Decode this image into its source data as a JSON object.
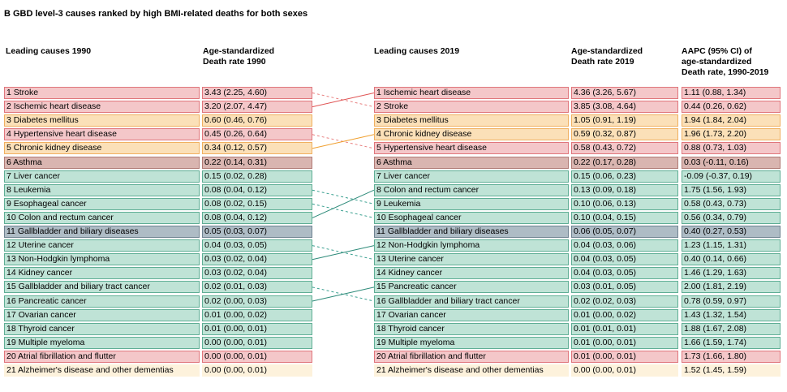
{
  "chart_data": {
    "type": "table",
    "title": "B GBD level-3 causes ranked by high BMI-related deaths for both sexes",
    "headers": {
      "leading_1990": "Leading causes 1990",
      "rate_1990": "Age-standardized\nDeath rate 1990",
      "leading_2019": "Leading causes 2019",
      "rate_2019": "Age-standardized\nDeath rate 2019",
      "aapc": "AAPC (95% CI) of\nage-standardized\nDeath rate, 1990-2019"
    },
    "colors": {
      "red": "#f4c7c9",
      "red_border": "#e0767c",
      "orange": "#fbe0b8",
      "orange_border": "#f0b060",
      "brown": "#d9b5b0",
      "brown_border": "#b07a75",
      "teal": "#bfe3d6",
      "teal_border": "#5fae95",
      "slate": "#aebcc5",
      "slate_border": "#6f8391",
      "cream": "#fdf2dc",
      "cream_border": "#ecd9b0",
      "solid_red_line": "#e05555",
      "solid_orange_line": "#f0a030",
      "solid_teal_line": "#2e8b7a",
      "dashed_red_line": "#e88080",
      "dashed_teal_line": "#3aa090"
    },
    "rows_1990": [
      {
        "rank_label": "1 Stroke",
        "rate": "3.43 (2.25, 4.60)",
        "color": "red"
      },
      {
        "rank_label": "2 Ischemic heart disease",
        "rate": "3.20 (2.07, 4.47)",
        "color": "red"
      },
      {
        "rank_label": "3 Diabetes mellitus",
        "rate": "0.60 (0.46, 0.76)",
        "color": "orange"
      },
      {
        "rank_label": "4 Hypertensive heart disease",
        "rate": "0.45 (0.26, 0.64)",
        "color": "red"
      },
      {
        "rank_label": "5 Chronic kidney disease",
        "rate": "0.34 (0.12, 0.57)",
        "color": "orange"
      },
      {
        "rank_label": "6 Asthma",
        "rate": "0.22 (0.14, 0.31)",
        "color": "brown"
      },
      {
        "rank_label": "7 Liver cancer",
        "rate": "0.15 (0.02, 0.28)",
        "color": "teal"
      },
      {
        "rank_label": "8 Leukemia",
        "rate": "0.08 (0.04, 0.12)",
        "color": "teal"
      },
      {
        "rank_label": "9 Esophageal cancer",
        "rate": "0.08 (0.02, 0.15)",
        "color": "teal"
      },
      {
        "rank_label": "10 Colon and rectum cancer",
        "rate": "0.08 (0.04, 0.12)",
        "color": "teal"
      },
      {
        "rank_label": "11 Gallbladder and biliary diseases",
        "rate": "0.05 (0.03, 0.07)",
        "color": "slate"
      },
      {
        "rank_label": "12 Uterine cancer",
        "rate": "0.04 (0.03, 0.05)",
        "color": "teal"
      },
      {
        "rank_label": "13 Non-Hodgkin lymphoma",
        "rate": "0.03 (0.02, 0.04)",
        "color": "teal"
      },
      {
        "rank_label": "14 Kidney cancer",
        "rate": "0.03 (0.02, 0.04)",
        "color": "teal"
      },
      {
        "rank_label": "15 Gallbladder and biliary tract cancer",
        "rate": "0.02 (0.01, 0.03)",
        "color": "teal"
      },
      {
        "rank_label": "16 Pancreatic cancer",
        "rate": "0.02 (0.00, 0.03)",
        "color": "teal"
      },
      {
        "rank_label": "17 Ovarian cancer",
        "rate": "0.01 (0.00, 0.02)",
        "color": "teal"
      },
      {
        "rank_label": "18 Thyroid cancer",
        "rate": "0.01 (0.00, 0.01)",
        "color": "teal"
      },
      {
        "rank_label": "19 Multiple myeloma",
        "rate": "0.00 (0.00, 0.01)",
        "color": "teal"
      },
      {
        "rank_label": "20 Atrial fibrillation and flutter",
        "rate": "0.00 (0.00, 0.01)",
        "color": "red"
      },
      {
        "rank_label": "21 Alzheimer's disease and other dementias",
        "rate": "0.00 (0.00, 0.01)",
        "color": "cream"
      }
    ],
    "rows_2019": [
      {
        "rank_label": "1 Ischemic heart disease",
        "rate": "4.36 (3.26, 5.67)",
        "aapc": "1.11 (0.88, 1.34)",
        "color": "red"
      },
      {
        "rank_label": "2 Stroke",
        "rate": "3.85 (3.08, 4.64)",
        "aapc": "0.44 (0.26, 0.62)",
        "color": "red"
      },
      {
        "rank_label": "3 Diabetes mellitus",
        "rate": "1.05 (0.91, 1.19)",
        "aapc": "1.94 (1.84, 2.04)",
        "color": "orange"
      },
      {
        "rank_label": "4 Chronic kidney disease",
        "rate": "0.59 (0.32, 0.87)",
        "aapc": "1.96 (1.73, 2.20)",
        "color": "orange"
      },
      {
        "rank_label": "5 Hypertensive heart disease",
        "rate": "0.58 (0.43, 0.72)",
        "aapc": "0.88 (0.73, 1.03)",
        "color": "red"
      },
      {
        "rank_label": "6 Asthma",
        "rate": "0.22 (0.17, 0.28)",
        "aapc": "0.03 (-0.11, 0.16)",
        "color": "brown"
      },
      {
        "rank_label": "7 Liver cancer",
        "rate": "0.15 (0.06, 0.23)",
        "aapc": "-0.09 (-0.37, 0.19)",
        "color": "teal"
      },
      {
        "rank_label": "8 Colon and rectum cancer",
        "rate": "0.13 (0.09, 0.18)",
        "aapc": "1.75 (1.56, 1.93)",
        "color": "teal"
      },
      {
        "rank_label": "9 Leukemia",
        "rate": "0.10 (0.06, 0.13)",
        "aapc": "0.58 (0.43, 0.73)",
        "color": "teal"
      },
      {
        "rank_label": "10 Esophageal cancer",
        "rate": "0.10 (0.04, 0.15)",
        "aapc": "0.56 (0.34, 0.79)",
        "color": "teal"
      },
      {
        "rank_label": "11 Gallbladder and biliary diseases",
        "rate": "0.06 (0.05, 0.07)",
        "aapc": "0.40 (0.27, 0.53)",
        "color": "slate"
      },
      {
        "rank_label": "12 Non-Hodgkin lymphoma",
        "rate": "0.04 (0.03, 0.06)",
        "aapc": "1.23 (1.15, 1.31)",
        "color": "teal"
      },
      {
        "rank_label": "13 Uterine cancer",
        "rate": "0.04 (0.03, 0.05)",
        "aapc": "0.40 (0.14, 0.66)",
        "color": "teal"
      },
      {
        "rank_label": "14 Kidney cancer",
        "rate": "0.04 (0.03, 0.05)",
        "aapc": "1.46 (1.29, 1.63)",
        "color": "teal"
      },
      {
        "rank_label": "15 Pancreatic cancer",
        "rate": "0.03 (0.01, 0.05)",
        "aapc": "2.00 (1.81, 2.19)",
        "color": "teal"
      },
      {
        "rank_label": "16 Gallbladder and biliary tract cancer",
        "rate": "0.02 (0.02, 0.03)",
        "aapc": "0.78 (0.59, 0.97)",
        "color": "teal"
      },
      {
        "rank_label": "17 Ovarian cancer",
        "rate": "0.01 (0.00, 0.02)",
        "aapc": "1.43 (1.32, 1.54)",
        "color": "teal"
      },
      {
        "rank_label": "18 Thyroid cancer",
        "rate": "0.01 (0.01, 0.01)",
        "aapc": "1.88 (1.67, 2.08)",
        "color": "teal"
      },
      {
        "rank_label": "19 Multiple myeloma",
        "rate": "0.01 (0.00, 0.01)",
        "aapc": "1.66 (1.59, 1.74)",
        "color": "teal"
      },
      {
        "rank_label": "20 Atrial fibrillation and flutter",
        "rate": "0.01 (0.00, 0.01)",
        "aapc": "1.73 (1.66, 1.80)",
        "color": "red"
      },
      {
        "rank_label": "21 Alzheimer's disease and other dementias",
        "rate": "0.00 (0.00, 0.01)",
        "aapc": "1.52 (1.45, 1.59)",
        "color": "cream"
      }
    ],
    "rank_links": [
      {
        "from": 1,
        "to": 2,
        "style": "dashed",
        "color": "dashed_red_line"
      },
      {
        "from": 2,
        "to": 1,
        "style": "solid",
        "color": "solid_red_line"
      },
      {
        "from": 4,
        "to": 5,
        "style": "dashed",
        "color": "dashed_red_line"
      },
      {
        "from": 5,
        "to": 4,
        "style": "solid",
        "color": "solid_orange_line"
      },
      {
        "from": 8,
        "to": 9,
        "style": "dashed",
        "color": "dashed_teal_line"
      },
      {
        "from": 9,
        "to": 10,
        "style": "dashed",
        "color": "dashed_teal_line"
      },
      {
        "from": 10,
        "to": 8,
        "style": "solid",
        "color": "solid_teal_line"
      },
      {
        "from": 12,
        "to": 13,
        "style": "dashed",
        "color": "dashed_teal_line"
      },
      {
        "from": 13,
        "to": 12,
        "style": "solid",
        "color": "solid_teal_line"
      },
      {
        "from": 15,
        "to": 16,
        "style": "dashed",
        "color": "dashed_teal_line"
      },
      {
        "from": 16,
        "to": 15,
        "style": "solid",
        "color": "solid_teal_line"
      }
    ]
  }
}
